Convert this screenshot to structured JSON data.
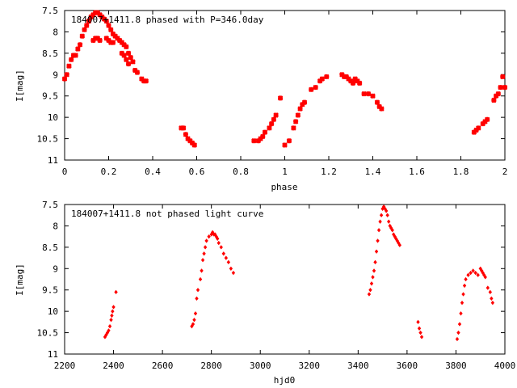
{
  "chart_data": [
    {
      "type": "scatter",
      "title": "184007+1411.8 phased with P=346.0day",
      "xlabel": "phase",
      "ylabel": "I[mag]",
      "xlim": [
        0,
        2
      ],
      "ylim": [
        11,
        7.5
      ],
      "y_inverted": true,
      "xticks": [
        "0",
        "0.2",
        "0.4",
        "0.6",
        "0.8",
        "1",
        "1.2",
        "1.4",
        "1.6",
        "1.8",
        "2"
      ],
      "yticks": [
        "7.5",
        "8",
        "8.5",
        "9",
        "9.5",
        "10",
        "10.5",
        "11"
      ],
      "color": "#ff0000",
      "series": [
        {
          "x": [
            0.0,
            0.01,
            0.02,
            0.03,
            0.04,
            0.05,
            0.06,
            0.07,
            0.08,
            0.09,
            0.1,
            0.11,
            0.12,
            0.13,
            0.14,
            0.15,
            0.16,
            0.17,
            0.18,
            0.19,
            0.2,
            0.21,
            0.22,
            0.23,
            0.24,
            0.25,
            0.26,
            0.27,
            0.28,
            0.29,
            0.3,
            0.31,
            0.32,
            0.33,
            0.35,
            0.36,
            0.37,
            0.13,
            0.14,
            0.15,
            0.16,
            0.19,
            0.2,
            0.21,
            0.22,
            0.26,
            0.27,
            0.28,
            0.29,
            0.53,
            0.54,
            0.55,
            0.56,
            0.57,
            0.58,
            0.59,
            0.86,
            0.88,
            0.89,
            0.9,
            0.91,
            0.93,
            0.94,
            0.95,
            0.96,
            0.98,
            1.0,
            1.02,
            1.04,
            1.05,
            1.06,
            1.07,
            1.08,
            1.09,
            1.12,
            1.14,
            1.16,
            1.17,
            1.19,
            1.26,
            1.27,
            1.28,
            1.29,
            1.3,
            1.31,
            1.32,
            1.33,
            1.34,
            1.36,
            1.38,
            1.4,
            1.42,
            1.43,
            1.44,
            1.86,
            1.87,
            1.88,
            1.9,
            1.91,
            1.92,
            1.95,
            1.96,
            1.97,
            1.98,
            1.99,
            2.0
          ],
          "y": [
            9.1,
            9.0,
            8.8,
            8.65,
            8.55,
            8.55,
            8.4,
            8.3,
            8.1,
            7.95,
            7.85,
            7.75,
            7.65,
            7.6,
            7.55,
            7.55,
            7.6,
            7.65,
            7.7,
            7.75,
            7.85,
            7.95,
            8.05,
            8.1,
            8.15,
            8.2,
            8.25,
            8.3,
            8.35,
            8.5,
            8.6,
            8.7,
            8.9,
            8.95,
            9.1,
            9.15,
            9.15,
            8.2,
            8.15,
            8.15,
            8.2,
            8.15,
            8.2,
            8.25,
            8.25,
            8.5,
            8.55,
            8.65,
            8.75,
            10.25,
            10.25,
            10.4,
            10.5,
            10.55,
            10.6,
            10.65,
            10.55,
            10.55,
            10.5,
            10.45,
            10.35,
            10.25,
            10.15,
            10.05,
            9.95,
            9.55,
            10.65,
            10.55,
            10.25,
            10.1,
            9.95,
            9.8,
            9.7,
            9.65,
            9.35,
            9.3,
            9.15,
            9.1,
            9.05,
            9.0,
            9.05,
            9.05,
            9.1,
            9.15,
            9.2,
            9.1,
            9.15,
            9.2,
            9.45,
            9.45,
            9.5,
            9.65,
            9.75,
            9.8,
            10.35,
            10.3,
            10.25,
            10.15,
            10.1,
            10.05,
            9.6,
            9.5,
            9.45,
            9.3,
            9.05,
            9.3
          ]
        }
      ]
    },
    {
      "type": "scatter",
      "title": "184007+1411.8 not phased light curve",
      "xlabel": "hjd0",
      "ylabel": "I[mag]",
      "xlim": [
        2200,
        4000
      ],
      "ylim": [
        11,
        7.5
      ],
      "y_inverted": true,
      "xticks": [
        "2200",
        "2400",
        "2600",
        "2800",
        "3000",
        "3200",
        "3400",
        "3600",
        "3800",
        "4000"
      ],
      "yticks": [
        "7.5",
        "8",
        "8.5",
        "9",
        "9.5",
        "10",
        "10.5",
        "11"
      ],
      "color": "#ff0000",
      "series": [
        {
          "x": [
            2365,
            2370,
            2375,
            2380,
            2385,
            2390,
            2393,
            2396,
            2400,
            2410,
            2720,
            2725,
            2730,
            2735,
            2740,
            2745,
            2755,
            2760,
            2765,
            2770,
            2775,
            2780,
            2790,
            2800,
            2805,
            2810,
            2815,
            2820,
            2825,
            2830,
            2840,
            2850,
            2860,
            2870,
            2880,
            2890,
            3445,
            3450,
            3455,
            3460,
            3465,
            3470,
            3475,
            3480,
            3485,
            3490,
            3495,
            3500,
            3505,
            3510,
            3515,
            3520,
            3525,
            3530,
            3535,
            3540,
            3545,
            3550,
            3555,
            3560,
            3565,
            3570,
            3645,
            3650,
            3655,
            3660,
            3805,
            3810,
            3815,
            3820,
            3825,
            3830,
            3835,
            3840,
            3850,
            3860,
            3870,
            3880,
            3890,
            3900,
            3905,
            3910,
            3915,
            3920,
            3930,
            3940,
            3945,
            3950
          ],
          "y": [
            10.6,
            10.55,
            10.5,
            10.45,
            10.35,
            10.2,
            10.1,
            10.0,
            9.9,
            9.55,
            10.35,
            10.3,
            10.2,
            10.05,
            9.7,
            9.5,
            9.25,
            9.05,
            8.8,
            8.65,
            8.5,
            8.35,
            8.25,
            8.2,
            8.15,
            8.2,
            8.2,
            8.25,
            8.3,
            8.4,
            8.5,
            8.65,
            8.75,
            8.85,
            9.0,
            9.1,
            9.6,
            9.5,
            9.35,
            9.2,
            9.05,
            8.85,
            8.6,
            8.35,
            8.1,
            7.9,
            7.75,
            7.6,
            7.55,
            7.6,
            7.65,
            7.75,
            7.9,
            8.0,
            8.05,
            8.1,
            8.2,
            8.25,
            8.3,
            8.35,
            8.4,
            8.45,
            10.25,
            10.4,
            10.5,
            10.6,
            10.65,
            10.5,
            10.3,
            10.05,
            9.8,
            9.6,
            9.4,
            9.25,
            9.15,
            9.1,
            9.05,
            9.1,
            9.15,
            9.0,
            9.05,
            9.1,
            9.15,
            9.2,
            9.45,
            9.55,
            9.7,
            9.8
          ]
        }
      ]
    }
  ]
}
